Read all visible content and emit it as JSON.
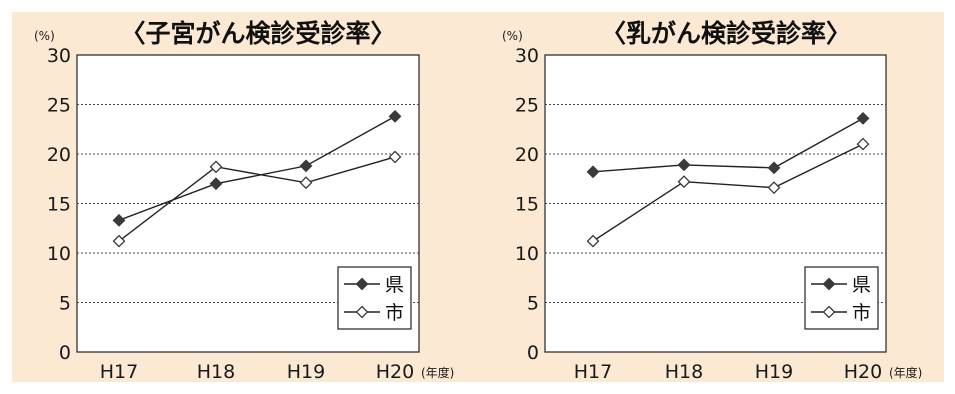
{
  "chart_data": [
    {
      "type": "line",
      "title": "〈子宮がん検診受診率〉",
      "ylabel": "(%)",
      "xlabel": "",
      "x_unit": "(年度)",
      "categories": [
        "H17",
        "H18",
        "H19",
        "H20"
      ],
      "ylim": [
        0,
        30
      ],
      "yticks": [
        0,
        5,
        10,
        15,
        20,
        25,
        30
      ],
      "grid": true,
      "legend_position": "bottom-right",
      "series": [
        {
          "name": "県",
          "marker": "filled-diamond",
          "values": [
            13.3,
            17.0,
            18.8,
            23.8
          ]
        },
        {
          "name": "市",
          "marker": "open-diamond",
          "values": [
            11.2,
            18.7,
            17.1,
            19.7
          ]
        }
      ]
    },
    {
      "type": "line",
      "title": "〈乳がん検診受診率〉",
      "ylabel": "(%)",
      "xlabel": "",
      "x_unit": "(年度)",
      "categories": [
        "H17",
        "H18",
        "H19",
        "H20"
      ],
      "ylim": [
        0,
        30
      ],
      "yticks": [
        0,
        5,
        10,
        15,
        20,
        25,
        30
      ],
      "grid": true,
      "legend_position": "bottom-right",
      "series": [
        {
          "name": "県",
          "marker": "filled-diamond",
          "values": [
            18.2,
            18.9,
            18.6,
            23.6
          ]
        },
        {
          "name": "市",
          "marker": "open-diamond",
          "values": [
            11.2,
            17.2,
            16.6,
            21.0
          ]
        }
      ]
    }
  ],
  "colors": {
    "background": "#fbe9d4",
    "plot_area": "#ffffff",
    "line": "#222222",
    "grid": "#444444"
  }
}
